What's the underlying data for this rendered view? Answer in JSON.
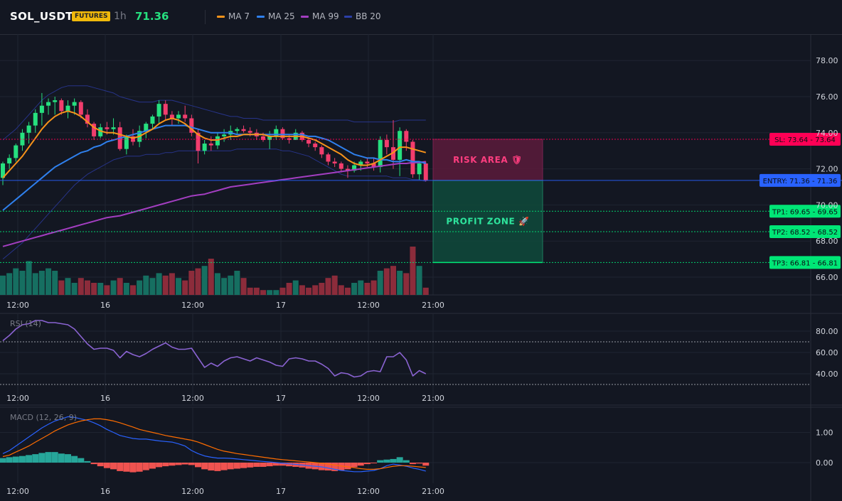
{
  "header": {
    "symbol": "SOL_USDT",
    "badge": "FUTURES",
    "timeframe": "1h",
    "price": "71.36",
    "legend": [
      {
        "label": "MA 7",
        "color": "#f7931a"
      },
      {
        "label": "MA 25",
        "color": "#2f80ed"
      },
      {
        "label": "MA 99",
        "color": "#a33ec1"
      },
      {
        "label": "BB 20",
        "color": "#2b3fa8"
      }
    ]
  },
  "chart_data": [
    {
      "type": "candlestick",
      "panel": "price",
      "yticks": [
        66.0,
        68.0,
        70.0,
        72.0,
        74.0,
        76.0,
        78.0
      ],
      "ylim": [
        65.0,
        79.2
      ],
      "xticks": [
        "12:00",
        "16",
        "12:00",
        "17",
        "12:00",
        "21:00"
      ],
      "candles": [
        [
          71.5,
          72.4,
          71.1,
          72.3
        ],
        [
          72.3,
          72.8,
          72.0,
          72.6
        ],
        [
          72.6,
          73.4,
          72.4,
          73.3
        ],
        [
          73.3,
          74.2,
          73.0,
          74.0
        ],
        [
          74.0,
          74.6,
          73.4,
          74.4
        ],
        [
          74.4,
          75.3,
          74.0,
          75.1
        ],
        [
          75.1,
          76.2,
          74.4,
          75.5
        ],
        [
          75.5,
          75.9,
          75.0,
          75.7
        ],
        [
          75.7,
          76.0,
          75.0,
          75.8
        ],
        [
          75.8,
          75.9,
          75.0,
          75.2
        ],
        [
          75.2,
          75.8,
          74.8,
          75.5
        ],
        [
          75.5,
          75.9,
          75.0,
          75.7
        ],
        [
          75.7,
          75.8,
          74.8,
          75.0
        ],
        [
          75.0,
          75.3,
          74.3,
          74.5
        ],
        [
          74.5,
          74.6,
          73.6,
          73.8
        ],
        [
          73.8,
          74.5,
          73.7,
          74.3
        ],
        [
          74.3,
          74.6,
          73.9,
          74.2
        ],
        [
          74.2,
          74.8,
          73.9,
          74.3
        ],
        [
          74.3,
          74.6,
          73.0,
          73.1
        ],
        [
          73.1,
          73.9,
          72.8,
          73.8
        ],
        [
          73.8,
          74.2,
          73.3,
          73.5
        ],
        [
          73.5,
          74.4,
          73.2,
          74.1
        ],
        [
          74.1,
          74.6,
          73.7,
          74.5
        ],
        [
          74.5,
          75.0,
          74.2,
          74.9
        ],
        [
          74.9,
          75.8,
          74.5,
          75.6
        ],
        [
          75.6,
          75.8,
          74.7,
          75.0
        ],
        [
          75.0,
          75.2,
          74.4,
          74.8
        ],
        [
          74.8,
          75.2,
          74.5,
          75.0
        ],
        [
          75.0,
          75.5,
          74.6,
          74.8
        ],
        [
          74.8,
          75.0,
          73.8,
          74.0
        ],
        [
          74.0,
          74.2,
          72.3,
          73.0
        ],
        [
          73.0,
          73.6,
          72.8,
          73.4
        ],
        [
          73.4,
          73.8,
          73.0,
          73.3
        ],
        [
          73.3,
          74.0,
          73.1,
          73.8
        ],
        [
          73.8,
          74.2,
          73.5,
          73.9
        ],
        [
          73.9,
          74.4,
          73.6,
          74.1
        ],
        [
          74.1,
          74.3,
          73.9,
          74.2
        ],
        [
          74.2,
          74.4,
          74.0,
          74.1
        ],
        [
          74.1,
          74.3,
          73.8,
          74.0
        ],
        [
          74.0,
          74.2,
          73.6,
          73.8
        ],
        [
          73.8,
          74.0,
          73.5,
          73.6
        ],
        [
          73.6,
          74.1,
          73.1,
          73.8
        ],
        [
          73.8,
          74.4,
          73.6,
          74.2
        ],
        [
          74.2,
          74.3,
          73.6,
          73.7
        ],
        [
          73.7,
          73.9,
          73.4,
          73.6
        ],
        [
          73.6,
          74.2,
          73.6,
          74.0
        ],
        [
          74.0,
          74.1,
          73.5,
          73.6
        ],
        [
          73.6,
          73.7,
          73.2,
          73.4
        ],
        [
          73.4,
          73.5,
          73.0,
          73.2
        ],
        [
          73.2,
          73.3,
          72.6,
          72.8
        ],
        [
          72.8,
          72.9,
          72.2,
          72.4
        ],
        [
          72.4,
          72.6,
          72.1,
          72.3
        ],
        [
          72.3,
          72.4,
          71.8,
          72.0
        ],
        [
          72.0,
          72.2,
          71.5,
          71.9
        ],
        [
          71.9,
          72.4,
          71.8,
          72.2
        ],
        [
          72.2,
          72.5,
          71.9,
          72.4
        ],
        [
          72.4,
          72.6,
          72.1,
          72.3
        ],
        [
          72.3,
          72.6,
          71.9,
          72.1
        ],
        [
          72.1,
          73.8,
          71.8,
          73.6
        ],
        [
          73.6,
          73.9,
          72.8,
          73.2
        ],
        [
          73.2,
          74.7,
          72.0,
          72.5
        ],
        [
          72.5,
          74.3,
          71.6,
          74.1
        ],
        [
          74.1,
          74.2,
          73.0,
          73.5
        ],
        [
          73.5,
          73.6,
          71.5,
          71.7
        ],
        [
          71.7,
          72.4,
          71.4,
          72.3
        ],
        [
          72.3,
          72.4,
          71.3,
          71.36
        ]
      ],
      "ma7": [
        71.5,
        71.9,
        72.3,
        72.7,
        73.2,
        73.7,
        74.2,
        74.6,
        74.9,
        75.1,
        75.2,
        75.1,
        74.9,
        74.6,
        74.3,
        74.1,
        74.0,
        74.0,
        73.9,
        73.8,
        73.7,
        73.8,
        74.0,
        74.2,
        74.5,
        74.7,
        74.8,
        74.7,
        74.5,
        74.2,
        73.9,
        73.7,
        73.6,
        73.6,
        73.7,
        73.8,
        73.8,
        73.9,
        73.9,
        73.9,
        73.9,
        73.8,
        73.8,
        73.8,
        73.8,
        73.8,
        73.8,
        73.7,
        73.6,
        73.4,
        73.2,
        73.0,
        72.8,
        72.5,
        72.3,
        72.2,
        72.2,
        72.3,
        72.5,
        72.7,
        72.9,
        73.2,
        73.2,
        73.1,
        73.0,
        72.9
      ],
      "ma25": [
        69.7,
        70.0,
        70.3,
        70.6,
        70.9,
        71.2,
        71.5,
        71.8,
        72.1,
        72.3,
        72.5,
        72.7,
        72.9,
        73.0,
        73.2,
        73.3,
        73.5,
        73.6,
        73.7,
        73.8,
        73.9,
        74.0,
        74.1,
        74.2,
        74.3,
        74.4,
        74.4,
        74.4,
        74.4,
        74.3,
        74.2,
        74.1,
        74.0,
        74.0,
        74.0,
        74.0,
        73.9,
        73.9,
        73.9,
        73.9,
        73.9,
        73.9,
        73.9,
        73.9,
        73.9,
        73.9,
        73.9,
        73.8,
        73.8,
        73.7,
        73.6,
        73.4,
        73.2,
        73.0,
        72.8,
        72.7,
        72.6,
        72.6,
        72.5,
        72.5,
        72.4,
        72.4,
        72.5,
        72.4,
        72.4,
        72.3
      ],
      "ma99": [
        67.7,
        67.8,
        67.9,
        68.0,
        68.1,
        68.2,
        68.3,
        68.4,
        68.5,
        68.6,
        68.7,
        68.8,
        68.9,
        69.0,
        69.1,
        69.2,
        69.3,
        69.35,
        69.4,
        69.5,
        69.6,
        69.7,
        69.8,
        69.9,
        70.0,
        70.1,
        70.2,
        70.3,
        70.4,
        70.5,
        70.55,
        70.6,
        70.7,
        70.8,
        70.9,
        71.0,
        71.05,
        71.1,
        71.15,
        71.2,
        71.25,
        71.3,
        71.35,
        71.4,
        71.45,
        71.5,
        71.55,
        71.6,
        71.65,
        71.7,
        71.75,
        71.8,
        71.85,
        71.9,
        71.95,
        72.0,
        72.05,
        72.1,
        72.15,
        72.2,
        72.25,
        72.3,
        72.3,
        72.35,
        72.35,
        72.4
      ],
      "bb_upper": [
        73.6,
        73.9,
        74.2,
        74.6,
        75.0,
        75.4,
        75.8,
        76.1,
        76.3,
        76.5,
        76.6,
        76.6,
        76.6,
        76.6,
        76.5,
        76.4,
        76.3,
        76.2,
        76.0,
        75.9,
        75.8,
        75.7,
        75.7,
        75.7,
        75.8,
        75.8,
        75.8,
        75.7,
        75.6,
        75.5,
        75.4,
        75.3,
        75.2,
        75.1,
        75.0,
        74.9,
        74.9,
        74.8,
        74.8,
        74.8,
        74.7,
        74.7,
        74.7,
        74.7,
        74.7,
        74.7,
        74.7,
        74.7,
        74.7,
        74.7,
        74.7,
        74.7,
        74.7,
        74.7,
        74.6,
        74.6,
        74.6,
        74.6,
        74.6,
        74.6,
        74.6,
        74.7,
        74.7,
        74.7,
        74.7,
        74.7
      ],
      "bb_lower": [
        67.0,
        67.3,
        67.6,
        67.9,
        68.3,
        68.7,
        69.1,
        69.5,
        69.9,
        70.3,
        70.7,
        71.1,
        71.4,
        71.7,
        71.9,
        72.1,
        72.3,
        72.5,
        72.6,
        72.7,
        72.7,
        72.7,
        72.8,
        72.8,
        72.8,
        72.9,
        72.9,
        73.0,
        73.0,
        73.0,
        73.0,
        73.0,
        73.0,
        73.0,
        73.0,
        73.0,
        73.1,
        73.1,
        73.1,
        73.1,
        73.1,
        73.1,
        73.1,
        73.0,
        73.0,
        72.9,
        72.8,
        72.7,
        72.5,
        72.3,
        72.1,
        71.9,
        71.7,
        71.6,
        71.6,
        71.6,
        71.6,
        71.6,
        71.6,
        71.6,
        71.5,
        71.5,
        71.5,
        71.4,
        71.4,
        71.3
      ],
      "volume": [
        8,
        9,
        11,
        10,
        14,
        9,
        10,
        11,
        10,
        6,
        7,
        5,
        7,
        6,
        5,
        5,
        4,
        6,
        7,
        5,
        4,
        6,
        8,
        7,
        9,
        8,
        9,
        7,
        6,
        10,
        11,
        12,
        15,
        9,
        7,
        8,
        10,
        7,
        3,
        3,
        2,
        2,
        2,
        3,
        5,
        6,
        4,
        3,
        4,
        5,
        7,
        8,
        4,
        3,
        5,
        6,
        5,
        6,
        10,
        11,
        12,
        10,
        9,
        20,
        12,
        3
      ],
      "levels": [
        {
          "label": "SL: 73.64 - 73.64",
          "price": 73.64,
          "color": "#ff0055"
        },
        {
          "label": "ENTRY: 71.36 - 71.36",
          "price": 71.36,
          "color": "#2962ff"
        },
        {
          "label": "TP1: 69.65 - 69.65",
          "price": 69.65,
          "color": "#00e676"
        },
        {
          "label": "TP2: 68.52 - 68.52",
          "price": 68.52,
          "color": "#00e676"
        },
        {
          "label": "TP3: 66.81 - 66.81",
          "price": 66.81,
          "color": "#00e676"
        }
      ],
      "zones": {
        "risk_label": "RISK AREA 🛡",
        "profit_label": "PROFIT ZONE 🚀"
      }
    },
    {
      "type": "line",
      "panel": "rsi",
      "title": "RSI (14)",
      "yticks": [
        40.0,
        60.0,
        80.0
      ],
      "ylim": [
        30,
        95
      ],
      "levels": [
        70,
        30
      ],
      "xticks": [
        "12:00",
        "16",
        "12:00",
        "17",
        "12:00",
        "21:00"
      ],
      "values": [
        71,
        76,
        82,
        86,
        87,
        90,
        90,
        88,
        88,
        87,
        86,
        82,
        75,
        68,
        63,
        64,
        64,
        62,
        55,
        61,
        58,
        56,
        59,
        63,
        66,
        69,
        65,
        63,
        63,
        64,
        55,
        46,
        50,
        47,
        52,
        55,
        56,
        54,
        52,
        55,
        53,
        51,
        48,
        47,
        54,
        55,
        54,
        52,
        52,
        49,
        45,
        38,
        41,
        40,
        37,
        38,
        42,
        43,
        42,
        56,
        56,
        60,
        53,
        38,
        43,
        40
      ]
    },
    {
      "type": "bar+line",
      "panel": "macd",
      "title": "MACD (12, 26, 9)",
      "yticks": [
        0.0,
        1.0
      ],
      "ylim": [
        -0.65,
        1.85
      ],
      "xticks": [
        "12:00",
        "16",
        "12:00",
        "17",
        "12:00",
        "21:00"
      ],
      "histogram": [
        0.15,
        0.18,
        0.2,
        0.22,
        0.25,
        0.28,
        0.32,
        0.35,
        0.35,
        0.3,
        0.28,
        0.22,
        0.15,
        0.05,
        -0.05,
        -0.12,
        -0.18,
        -0.22,
        -0.28,
        -0.3,
        -0.32,
        -0.3,
        -0.25,
        -0.2,
        -0.15,
        -0.12,
        -0.1,
        -0.08,
        -0.06,
        -0.08,
        -0.15,
        -0.22,
        -0.26,
        -0.28,
        -0.25,
        -0.22,
        -0.2,
        -0.18,
        -0.16,
        -0.14,
        -0.14,
        -0.12,
        -0.1,
        -0.1,
        -0.12,
        -0.14,
        -0.16,
        -0.2,
        -0.22,
        -0.25,
        -0.26,
        -0.28,
        -0.25,
        -0.22,
        -0.15,
        -0.1,
        -0.05,
        -0.02,
        0.08,
        0.1,
        0.12,
        0.18,
        0.08,
        -0.05,
        -0.03,
        -0.1
      ],
      "macd_line": [
        0.3,
        0.4,
        0.55,
        0.7,
        0.85,
        1.0,
        1.15,
        1.27,
        1.38,
        1.45,
        1.52,
        1.5,
        1.45,
        1.4,
        1.32,
        1.22,
        1.1,
        1.0,
        0.9,
        0.85,
        0.8,
        0.78,
        0.78,
        0.75,
        0.72,
        0.7,
        0.68,
        0.62,
        0.55,
        0.4,
        0.3,
        0.22,
        0.18,
        0.15,
        0.15,
        0.14,
        0.12,
        0.1,
        0.08,
        0.06,
        0.04,
        0.02,
        0.0,
        -0.02,
        -0.04,
        -0.06,
        -0.08,
        -0.1,
        -0.12,
        -0.14,
        -0.18,
        -0.22,
        -0.26,
        -0.28,
        -0.3,
        -0.3,
        -0.28,
        -0.26,
        -0.2,
        -0.1,
        -0.05,
        -0.08,
        -0.12,
        -0.18,
        -0.22,
        -0.28
      ],
      "signal_line": [
        0.2,
        0.25,
        0.35,
        0.45,
        0.55,
        0.68,
        0.8,
        0.92,
        1.05,
        1.15,
        1.25,
        1.32,
        1.38,
        1.42,
        1.45,
        1.45,
        1.42,
        1.38,
        1.32,
        1.25,
        1.18,
        1.1,
        1.05,
        1.0,
        0.95,
        0.9,
        0.86,
        0.82,
        0.78,
        0.74,
        0.68,
        0.6,
        0.52,
        0.44,
        0.38,
        0.34,
        0.3,
        0.27,
        0.24,
        0.21,
        0.18,
        0.15,
        0.12,
        0.1,
        0.08,
        0.06,
        0.04,
        0.02,
        0.0,
        -0.02,
        -0.05,
        -0.08,
        -0.11,
        -0.14,
        -0.17,
        -0.2,
        -0.22,
        -0.22,
        -0.2,
        -0.16,
        -0.12,
        -0.1,
        -0.1,
        -0.12,
        -0.14,
        -0.16
      ]
    }
  ]
}
